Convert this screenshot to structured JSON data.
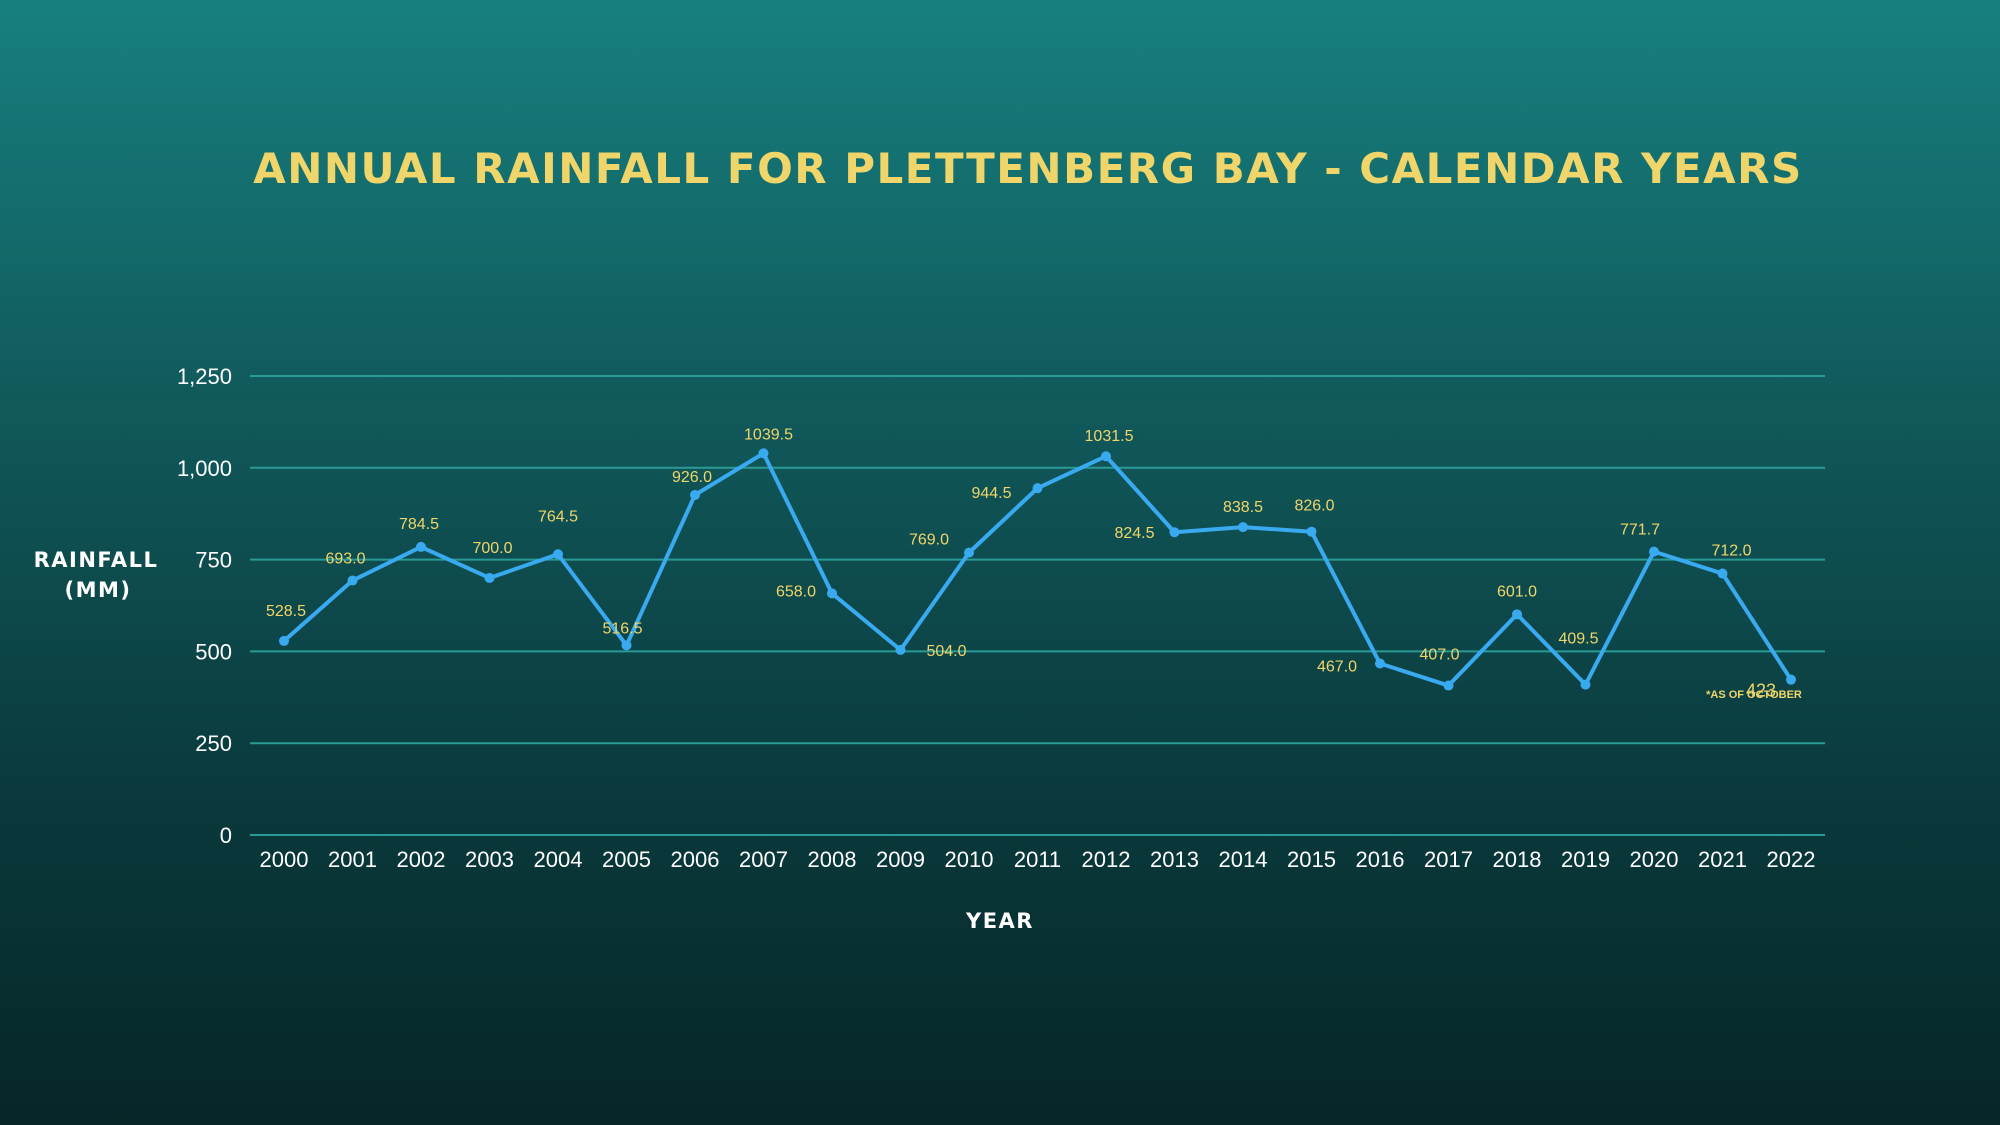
{
  "chart_data": {
    "type": "line",
    "title": "ANNUAL RAINFALL FOR PLETTENBERG BAY - CALENDAR YEARS",
    "xlabel": "YEAR",
    "ylabel_lines": [
      "RAINFALL",
      "(MM)"
    ],
    "ylim": [
      0,
      1250
    ],
    "yticks": [
      0,
      250,
      500,
      750,
      1000,
      1250
    ],
    "ytick_labels": [
      "0",
      "250",
      "500",
      "750",
      "1,000",
      "1,250"
    ],
    "grid": true,
    "legend": "none",
    "categories": [
      "2000",
      "2001",
      "2002",
      "2003",
      "2004",
      "2005",
      "2006",
      "2007",
      "2008",
      "2009",
      "2010",
      "2011",
      "2012",
      "2013",
      "2014",
      "2015",
      "2016",
      "2017",
      "2018",
      "2019",
      "2020",
      "2021",
      "2022"
    ],
    "values": [
      528.5,
      693.0,
      784.5,
      700.0,
      764.5,
      516.5,
      926.0,
      1039.5,
      658.0,
      504.0,
      769.0,
      944.5,
      1031.5,
      824.5,
      838.5,
      826.0,
      467.0,
      407.0,
      601.0,
      409.5,
      771.7,
      712.0,
      423
    ],
    "data_labels": [
      "528.5",
      "693.0",
      "784.5",
      "700.0",
      "764.5",
      "516.5",
      "926.0",
      "1039.5",
      "658.0",
      "504.0",
      "769.0",
      "944.5",
      "1031.5",
      "824.5",
      "838.5",
      "826.0",
      "467.0",
      "407.0",
      "601.0",
      "409.5",
      "771.7",
      "712.0",
      "423"
    ],
    "annotation": "*AS OF OCTOBER",
    "colors": {
      "line": "#3aaaf0",
      "labels": "#f0d56a",
      "title": "#f0d56a",
      "axis_text": "#ffffff",
      "grid": "#2a9a96"
    }
  }
}
